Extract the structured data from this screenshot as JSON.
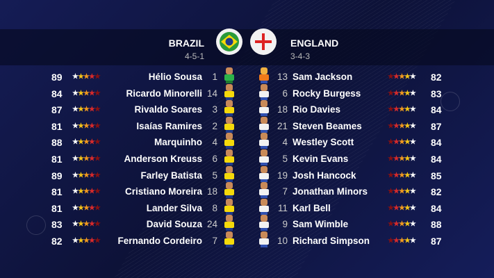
{
  "home": {
    "name": "BRAZIL",
    "formation": "4-5-1",
    "flag": "brazil-flag",
    "kit_color": "#f5d90a",
    "gk_color": "#2db34a",
    "players": [
      {
        "rating": 89,
        "name": "Hélio Sousa",
        "number": 1
      },
      {
        "rating": 84,
        "name": "Ricardo Minorelli",
        "number": 14
      },
      {
        "rating": 87,
        "name": "Rivaldo Soares",
        "number": 3
      },
      {
        "rating": 81,
        "name": "Isaías Ramires",
        "number": 2
      },
      {
        "rating": 88,
        "name": "Marquinho",
        "number": 4
      },
      {
        "rating": 81,
        "name": "Anderson Kreuss",
        "number": 6
      },
      {
        "rating": 89,
        "name": "Farley Batista",
        "number": 5
      },
      {
        "rating": 81,
        "name": "Cristiano Moreira",
        "number": 18
      },
      {
        "rating": 81,
        "name": "Lander Silva",
        "number": 8
      },
      {
        "rating": 83,
        "name": "David Souza",
        "number": 24
      },
      {
        "rating": 82,
        "name": "Fernando Cordeiro",
        "number": 7
      }
    ]
  },
  "away": {
    "name": "ENGLAND",
    "formation": "3-4-3",
    "flag": "england-flag",
    "kit_color": "#f2f2f2",
    "gk_color": "#f07a1a",
    "players": [
      {
        "rating": 82,
        "name": "Sam Jackson",
        "number": 13
      },
      {
        "rating": 83,
        "name": "Rocky Burgess",
        "number": 6
      },
      {
        "rating": 84,
        "name": "Rio Davies",
        "number": 18
      },
      {
        "rating": 87,
        "name": "Steven Beames",
        "number": 21
      },
      {
        "rating": 84,
        "name": "Westley Scott",
        "number": 4
      },
      {
        "rating": 84,
        "name": "Kevin Evans",
        "number": 5
      },
      {
        "rating": 85,
        "name": "Josh Hancock",
        "number": 19
      },
      {
        "rating": 82,
        "name": "Jonathan Minors",
        "number": 7
      },
      {
        "rating": 84,
        "name": "Karl Bell",
        "number": 11
      },
      {
        "rating": 88,
        "name": "Sam Wimble",
        "number": 9
      },
      {
        "rating": 87,
        "name": "Richard Simpson",
        "number": 10
      }
    ]
  },
  "star_colors": [
    "#ffffff",
    "#f5c518",
    "#f39a1e",
    "#d92b2b",
    "#8a1010"
  ]
}
